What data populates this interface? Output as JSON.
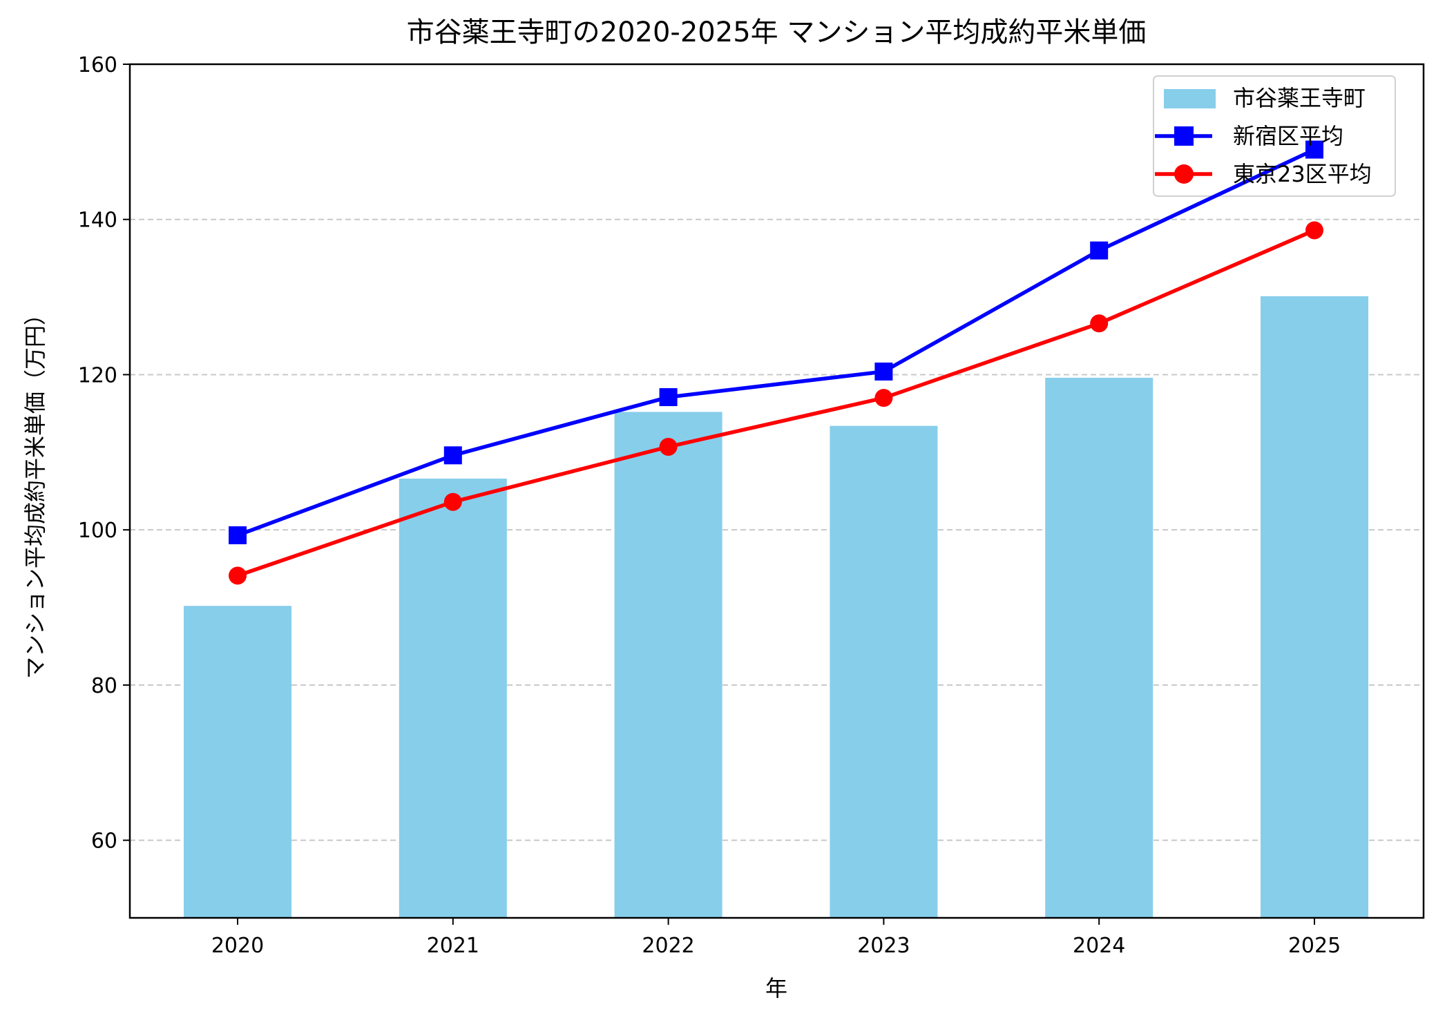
{
  "chart_data": {
    "type": "bar+line",
    "title": "市谷薬王寺町の2020-2025年 マンション平均成約平米単価",
    "xlabel": "年",
    "ylabel": "マンション平均成約平米単価（万円）",
    "categories": [
      "2020",
      "2021",
      "2022",
      "2023",
      "2024",
      "2025"
    ],
    "ylim": [
      50,
      160
    ],
    "yticks": [
      60,
      80,
      100,
      120,
      140,
      160
    ],
    "grid": "y-dashed",
    "legend_position": "top-right",
    "series": [
      {
        "name": "市谷薬王寺町",
        "type": "bar",
        "color": "#87ceeb",
        "values": [
          90.2,
          106.6,
          115.2,
          113.4,
          119.6,
          130.1
        ]
      },
      {
        "name": "新宿区平均",
        "type": "line",
        "marker": "square",
        "color": "#0000ff",
        "values": [
          99.3,
          109.6,
          117.1,
          120.4,
          136.0,
          149.0
        ]
      },
      {
        "name": "東京23区平均",
        "type": "line",
        "marker": "circle",
        "color": "#ff0000",
        "values": [
          94.1,
          103.6,
          110.7,
          117.0,
          126.6,
          138.6
        ]
      }
    ]
  }
}
